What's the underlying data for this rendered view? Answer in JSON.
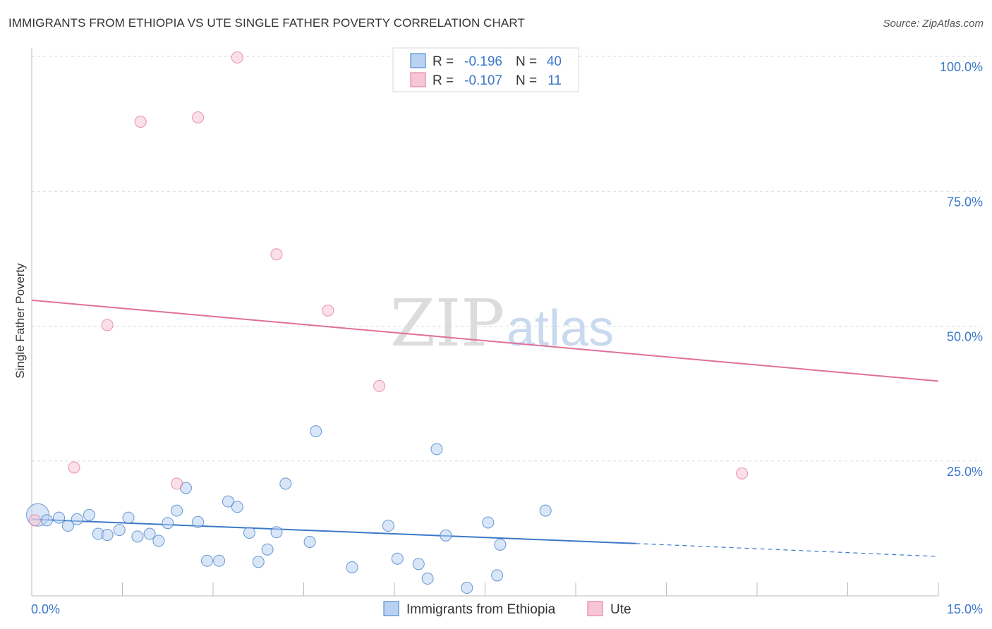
{
  "title": "IMMIGRANTS FROM ETHIOPIA VS UTE SINGLE FATHER POVERTY CORRELATION CHART",
  "source": "Source: ZipAtlas.com",
  "watermark": {
    "zip": "ZIP",
    "atlas": "atlas"
  },
  "colors": {
    "blue": "#3b78c8",
    "blue_fill": "#b9d2f2",
    "pink": "#e0709a",
    "pink_fill": "#f7c6d5",
    "grid": "#d8d8d8",
    "axis": "#bbbbbb"
  },
  "legend_top": [
    {
      "r_label": "R = ",
      "r_value": "-0.196",
      "n_label": "N = ",
      "n_value": "40",
      "color": "blue"
    },
    {
      "r_label": "R = ",
      "r_value": "-0.107",
      "n_label": "N = ",
      "n_value": "11",
      "color": "pink"
    }
  ],
  "legend_bottom": [
    {
      "label": "Immigrants from Ethiopia",
      "color": "blue"
    },
    {
      "label": "Ute",
      "color": "pink"
    }
  ],
  "chart_data": {
    "type": "scatter",
    "xlabel": "",
    "ylabel": "Single Father Poverty",
    "xlim": [
      0,
      15
    ],
    "ylim": [
      0,
      100
    ],
    "x_tick_labels": [
      {
        "value": 0,
        "label": "0.0%"
      },
      {
        "value": 15,
        "label": "15.0%"
      }
    ],
    "y_tick_labels": [
      {
        "value": 25,
        "label": "25.0%"
      },
      {
        "value": 50,
        "label": "50.0%"
      },
      {
        "value": 75,
        "label": "75.0%"
      },
      {
        "value": 100,
        "label": "100.0%"
      }
    ],
    "series": [
      {
        "name": "Immigrants from Ethiopia",
        "color": "blue",
        "points": [
          [
            0.1,
            15.0
          ],
          [
            0.25,
            14.0
          ],
          [
            0.45,
            14.5
          ],
          [
            0.6,
            13.0
          ],
          [
            0.75,
            14.2
          ],
          [
            0.95,
            15.0
          ],
          [
            1.1,
            11.5
          ],
          [
            1.25,
            11.3
          ],
          [
            1.45,
            12.2
          ],
          [
            1.6,
            14.5
          ],
          [
            1.75,
            11.0
          ],
          [
            1.95,
            11.5
          ],
          [
            2.1,
            10.2
          ],
          [
            2.25,
            13.5
          ],
          [
            2.4,
            15.8
          ],
          [
            2.55,
            20.0
          ],
          [
            2.75,
            13.7
          ],
          [
            2.9,
            6.5
          ],
          [
            3.1,
            6.5
          ],
          [
            3.25,
            17.5
          ],
          [
            3.4,
            16.5
          ],
          [
            3.6,
            11.7
          ],
          [
            3.75,
            6.3
          ],
          [
            3.9,
            8.6
          ],
          [
            4.05,
            11.8
          ],
          [
            4.2,
            20.8
          ],
          [
            4.6,
            10.0
          ],
          [
            4.7,
            30.5
          ],
          [
            5.3,
            5.3
          ],
          [
            5.9,
            13.0
          ],
          [
            6.05,
            6.9
          ],
          [
            6.4,
            5.9
          ],
          [
            6.55,
            3.2
          ],
          [
            6.7,
            27.2
          ],
          [
            6.85,
            11.2
          ],
          [
            7.2,
            1.5
          ],
          [
            7.55,
            13.6
          ],
          [
            7.7,
            3.8
          ],
          [
            7.75,
            9.5
          ],
          [
            8.5,
            15.8
          ]
        ]
      },
      {
        "name": "Ute",
        "color": "pink",
        "points": [
          [
            0.05,
            14.0
          ],
          [
            0.7,
            23.8
          ],
          [
            1.25,
            50.2
          ],
          [
            1.8,
            87.9
          ],
          [
            2.4,
            20.8
          ],
          [
            2.75,
            88.7
          ],
          [
            3.4,
            99.8
          ],
          [
            4.05,
            63.3
          ],
          [
            4.9,
            52.9
          ],
          [
            5.75,
            38.9
          ],
          [
            11.75,
            22.7
          ]
        ]
      }
    ],
    "trendlines": [
      {
        "series": "Immigrants from Ethiopia",
        "x": [
          0,
          10.0
        ],
        "y": [
          14.2,
          9.7
        ],
        "dashed_extension": {
          "x": [
            10.0,
            15.0
          ],
          "y": [
            9.7,
            7.3
          ]
        }
      },
      {
        "series": "Ute",
        "x": [
          0,
          15
        ],
        "y": [
          54.8,
          39.8
        ]
      }
    ]
  }
}
